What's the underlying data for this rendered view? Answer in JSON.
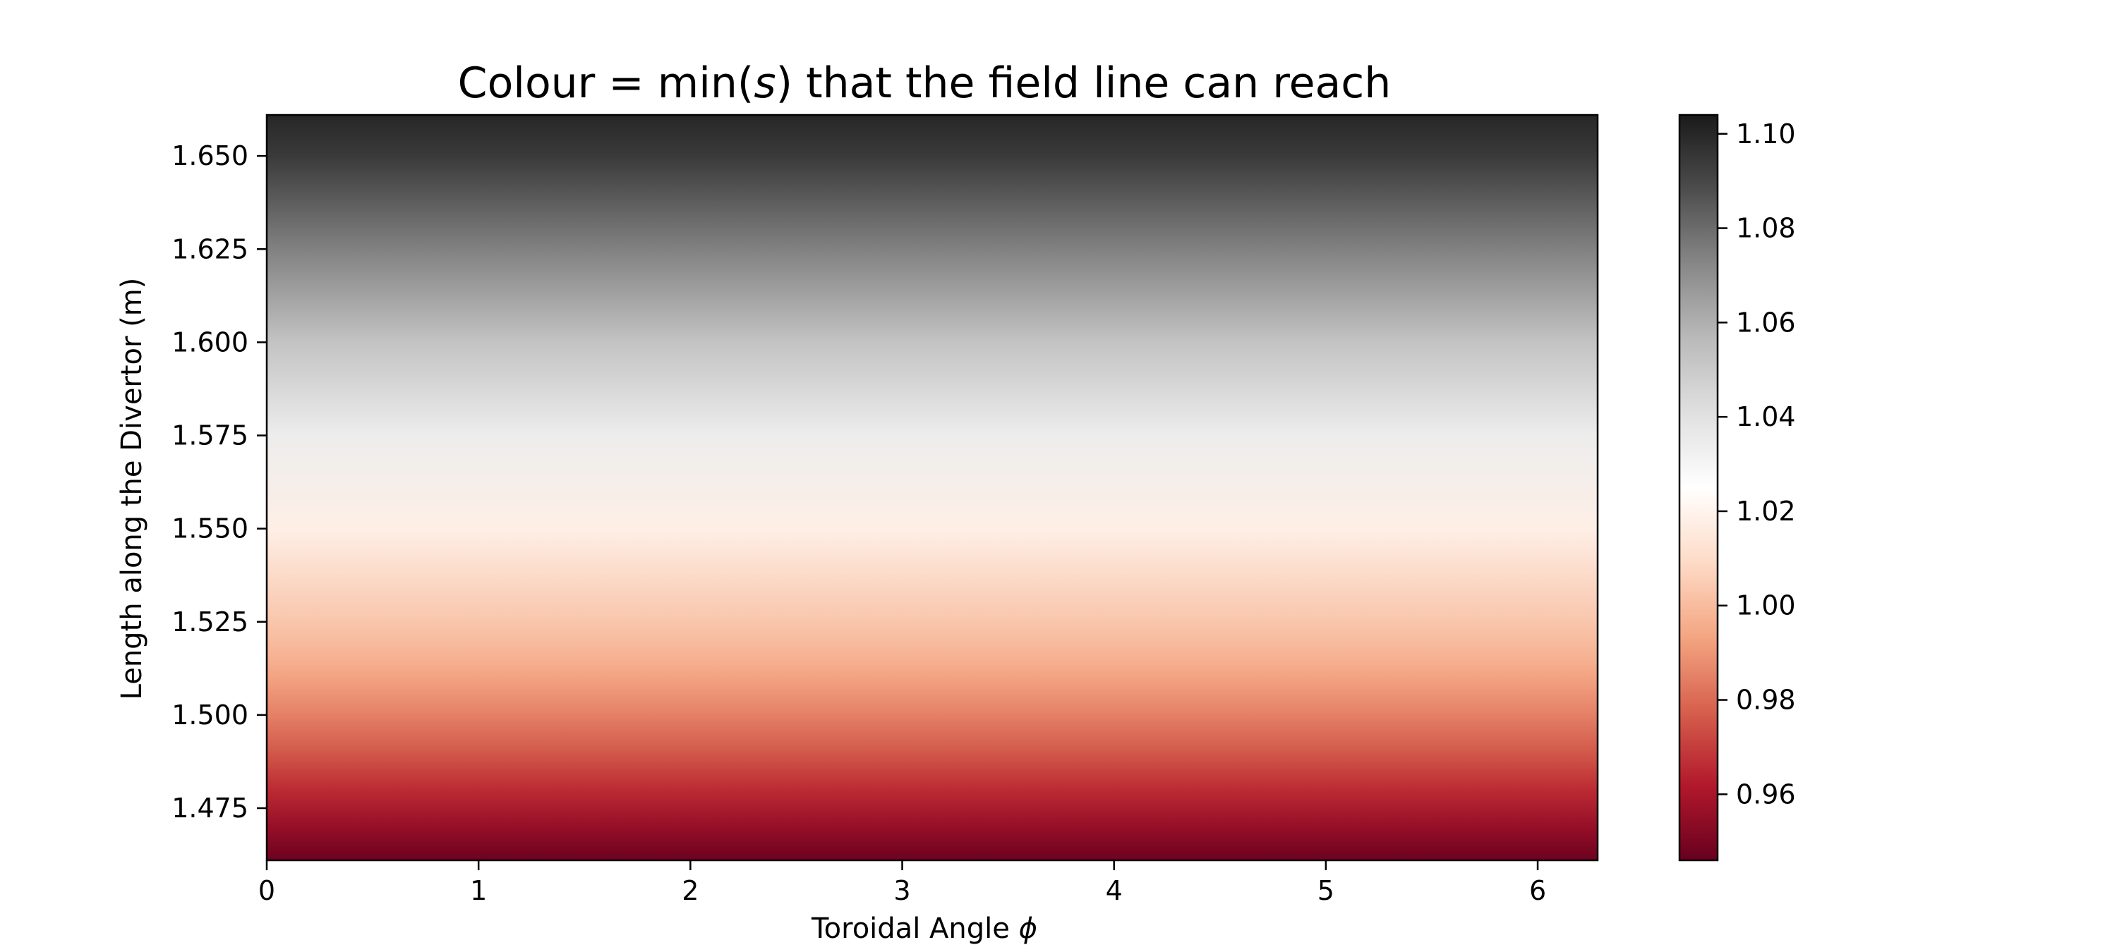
{
  "chart_data": {
    "type": "heatmap",
    "title_parts": [
      "Colour = min(",
      "s",
      ") that the field line can reach"
    ],
    "xlabel_parts": [
      "Toroidal Angle ",
      "ϕ"
    ],
    "ylabel": "Length along the Divertor (m)",
    "xlim": [
      0,
      6.283
    ],
    "ylim": [
      1.461,
      1.661
    ],
    "x_ticks": [
      0,
      1,
      2,
      3,
      4,
      5,
      6
    ],
    "x_tick_labels": [
      "0",
      "1",
      "2",
      "3",
      "4",
      "5",
      "6"
    ],
    "y_ticks": [
      1.475,
      1.5,
      1.525,
      1.55,
      1.575,
      1.6,
      1.625,
      1.65
    ],
    "y_tick_labels": [
      "1.475",
      "1.500",
      "1.525",
      "1.550",
      "1.575",
      "1.600",
      "1.625",
      "1.650"
    ],
    "colormap": "RdGy_r",
    "colorbar": {
      "range": [
        0.946,
        1.104
      ],
      "ticks": [
        0.96,
        0.98,
        1.0,
        1.02,
        1.04,
        1.06,
        1.08,
        1.1
      ],
      "tick_labels": [
        "0.96",
        "0.98",
        "1.00",
        "1.02",
        "1.04",
        "1.06",
        "1.08",
        "1.10"
      ]
    },
    "profile": {
      "length_m": [
        1.461,
        1.47,
        1.48,
        1.49,
        1.5,
        1.51,
        1.515,
        1.52,
        1.525,
        1.55,
        1.575,
        1.6,
        1.625,
        1.65,
        1.661
      ],
      "min_s": [
        0.947,
        0.956,
        0.966,
        0.976,
        0.985,
        0.993,
        0.997,
        1.0,
        1.003,
        1.018,
        1.034,
        1.053,
        1.074,
        1.094,
        1.1
      ]
    },
    "grid": false
  }
}
